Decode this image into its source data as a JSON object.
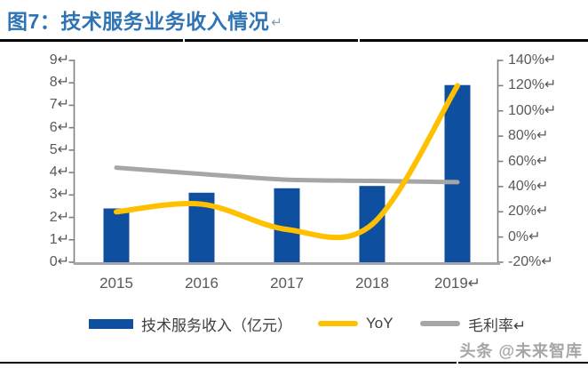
{
  "header": {
    "title": "图7：技术服务业务收入情况",
    "return_mark": "↵"
  },
  "watermark": {
    "text": "头条 @未来智库"
  },
  "chart_data": {
    "type": "bar",
    "title": "技术服务业务收入情况",
    "categories": [
      "2015",
      "2016",
      "2017",
      "2018",
      "2019"
    ],
    "x_tick_labels": [
      "2015",
      "2016",
      "2017",
      "2018",
      "2019↵"
    ],
    "series": [
      {
        "name": "技术服务收入（亿元）",
        "type": "bar",
        "axis": "left",
        "color": "#0F4F9F",
        "values": [
          2.4,
          3.1,
          3.3,
          3.4,
          7.9
        ]
      },
      {
        "name": "YoY",
        "type": "line",
        "axis": "right",
        "color": "#FFC000",
        "values": [
          20,
          26,
          6,
          10,
          120
        ]
      },
      {
        "name": "毛利率",
        "type": "line",
        "axis": "right",
        "color": "#A6A6A6",
        "values": [
          55,
          50,
          45.5,
          44.5,
          43.5
        ]
      }
    ],
    "left_axis": {
      "min": 0,
      "max": 9,
      "step": 1,
      "tick_labels": [
        "0↵",
        "1↵",
        "2↵",
        "3↵",
        "4↵",
        "5↵",
        "6↵",
        "7↵",
        "8↵",
        "9↵"
      ]
    },
    "right_axis": {
      "min": -20,
      "max": 140,
      "step": 20,
      "tick_labels": [
        "-20%↵",
        "0%↵",
        "20%↵",
        "40%↵",
        "60%↵",
        "80%↵",
        "100%↵",
        "120%↵",
        "140%↵"
      ]
    },
    "legend": [
      {
        "label": "技术服务收入（亿元）",
        "shape": "bar",
        "color": "#0F4F9F"
      },
      {
        "label": "YoY",
        "shape": "line",
        "color": "#FFC000"
      },
      {
        "label": "毛利率↵",
        "shape": "line",
        "color": "#A6A6A6"
      }
    ],
    "grid": false,
    "legend_position": "bottom",
    "axis_line_color": "#808080",
    "category_axis_color": "#A6A6A6",
    "tick_text_color": "#595959"
  }
}
